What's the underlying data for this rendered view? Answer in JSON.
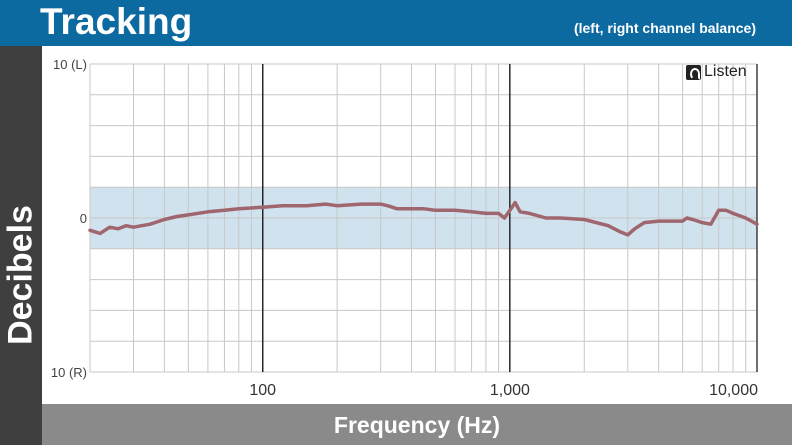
{
  "header": {
    "title": "Tracking",
    "subtitle": "(left, right channel balance)"
  },
  "branding": {
    "logo_text": "Listen"
  },
  "colors": {
    "header_bg": "#0d6aa1",
    "side_bg": "#3f3f3f",
    "footer_bg": "#8a8a8a",
    "band_fill": "#cfe2ee",
    "line": "#a0666e"
  },
  "chart_data": {
    "type": "line",
    "title": "Tracking",
    "subtitle": "(left, right channel balance)",
    "xlabel": "Frequency (Hz)",
    "ylabel": "Decibels",
    "x_scale": "log",
    "xlim": [
      20,
      10000
    ],
    "ylim": [
      -10,
      10
    ],
    "x_ticks": [
      {
        "value": 100,
        "label": "100"
      },
      {
        "value": 1000,
        "label": "1,000"
      },
      {
        "value": 10000,
        "label": "10,000"
      }
    ],
    "y_ticks": [
      {
        "value": 10,
        "label": "10 (L)"
      },
      {
        "value": 0,
        "label": "0"
      },
      {
        "value": -10,
        "label": "10 (R)"
      }
    ],
    "tolerance_band": [
      -2,
      2
    ],
    "grid": true,
    "series": [
      {
        "x": [
          20,
          22,
          24,
          26,
          28,
          30,
          35,
          40,
          45,
          50,
          60,
          70,
          80,
          100,
          120,
          150,
          180,
          200,
          250,
          300,
          320,
          350,
          400,
          450,
          500,
          600,
          700,
          800,
          900,
          950,
          1000,
          1050,
          1100,
          1200,
          1400,
          1600,
          2000,
          2500,
          2800,
          3000,
          3200,
          3500,
          4000,
          4500,
          5000,
          5200,
          5500,
          6000,
          6500,
          7000,
          7500,
          8000,
          9000,
          10000
        ],
        "y": [
          -0.8,
          -1.0,
          -0.6,
          -0.7,
          -0.5,
          -0.6,
          -0.4,
          -0.1,
          0.1,
          0.2,
          0.4,
          0.5,
          0.6,
          0.7,
          0.8,
          0.8,
          0.9,
          0.8,
          0.9,
          0.9,
          0.8,
          0.6,
          0.6,
          0.6,
          0.5,
          0.5,
          0.4,
          0.3,
          0.3,
          0.0,
          0.5,
          1.0,
          0.4,
          0.3,
          0.0,
          0.0,
          -0.1,
          -0.5,
          -0.9,
          -1.1,
          -0.7,
          -0.3,
          -0.2,
          -0.2,
          -0.2,
          0.0,
          -0.1,
          -0.3,
          -0.4,
          0.5,
          0.5,
          0.3,
          0.0,
          -0.4
        ]
      }
    ]
  }
}
